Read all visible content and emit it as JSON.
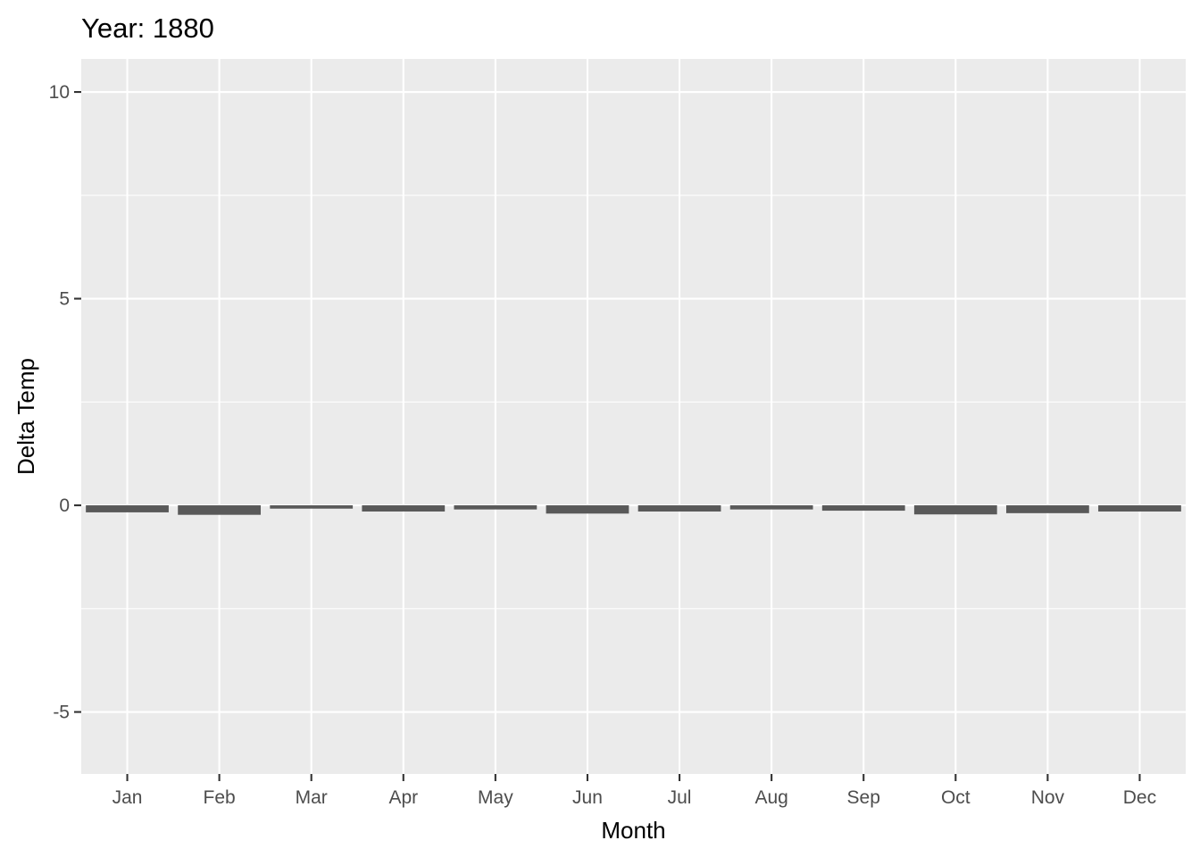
{
  "chart_data": {
    "type": "bar",
    "title": "Year: 1880",
    "xlabel": "Month",
    "ylabel": "Delta Temp",
    "categories": [
      "Jan",
      "Feb",
      "Mar",
      "Apr",
      "May",
      "Jun",
      "Jul",
      "Aug",
      "Sep",
      "Oct",
      "Nov",
      "Dec"
    ],
    "values": [
      -0.17,
      -0.23,
      -0.08,
      -0.15,
      -0.1,
      -0.2,
      -0.15,
      -0.1,
      -0.13,
      -0.22,
      -0.19,
      -0.15
    ],
    "ylim": [
      -6.5,
      10.8
    ],
    "yticks": [
      -5,
      0,
      5,
      10
    ],
    "ytick_labels": [
      "-5",
      "0",
      "5",
      "10"
    ],
    "grid": true,
    "legend": "none",
    "colors": {
      "panel": "#ebebeb",
      "grid": "#ffffff",
      "bar": "#595959",
      "tick_text": "#4d4d4d",
      "tick_mark": "#333333"
    }
  }
}
